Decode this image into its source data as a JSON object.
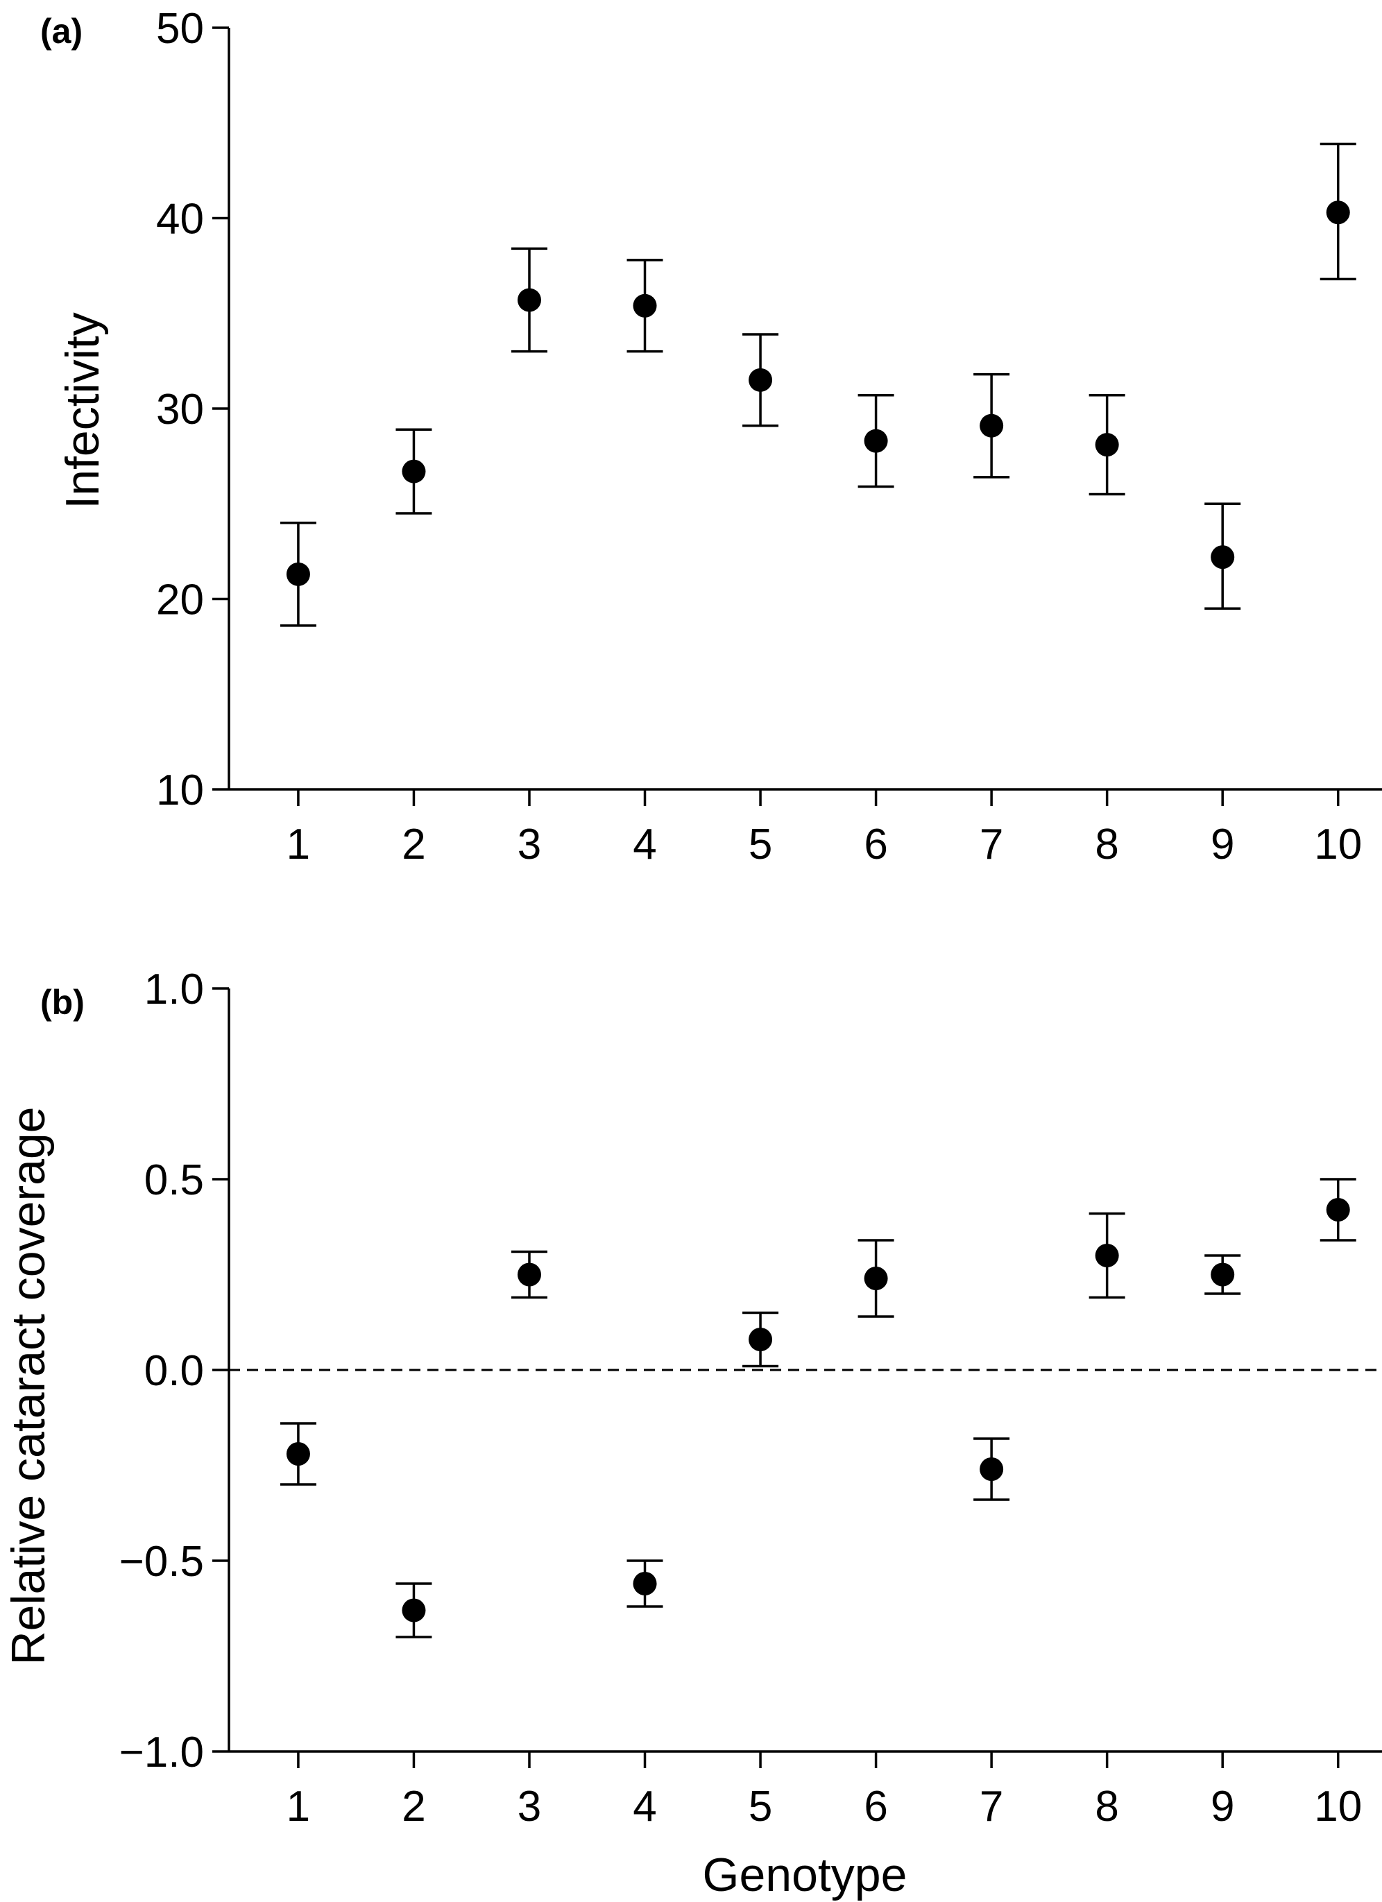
{
  "chart_data": [
    {
      "panel_label": "(a)",
      "type": "scatter",
      "x": [
        1,
        2,
        3,
        4,
        5,
        6,
        7,
        8,
        9,
        10
      ],
      "y": [
        21.3,
        26.7,
        35.7,
        35.4,
        31.5,
        28.3,
        29.1,
        28.1,
        22.2,
        40.3
      ],
      "y_lower": [
        18.6,
        24.5,
        33.0,
        33.0,
        29.1,
        25.9,
        26.4,
        25.5,
        19.5,
        36.8
      ],
      "y_upper": [
        24.0,
        28.9,
        38.4,
        37.8,
        33.9,
        30.7,
        31.8,
        30.7,
        25.0,
        43.9
      ],
      "x_tick_labels": [
        "1",
        "2",
        "3",
        "4",
        "5",
        "6",
        "7",
        "8",
        "9",
        "10"
      ],
      "y_ticks": [
        10,
        20,
        30,
        40,
        50
      ],
      "y_tick_labels": [
        "10",
        "20",
        "30",
        "40",
        "50"
      ],
      "ylim": [
        10,
        50
      ],
      "xlim": [
        0.4,
        10.5
      ],
      "ylabel": "Infectivity",
      "xlabel": "",
      "grid": false,
      "reference_line": null
    },
    {
      "panel_label": "(b)",
      "type": "scatter",
      "x": [
        1,
        2,
        3,
        4,
        5,
        6,
        7,
        8,
        9,
        10
      ],
      "y": [
        -0.22,
        -0.63,
        0.25,
        -0.56,
        0.08,
        0.24,
        -0.26,
        0.3,
        0.25,
        0.42
      ],
      "y_lower": [
        -0.3,
        -0.7,
        0.19,
        -0.62,
        0.01,
        0.14,
        -0.34,
        0.19,
        0.2,
        0.34
      ],
      "y_upper": [
        -0.14,
        -0.56,
        0.31,
        -0.5,
        0.15,
        0.34,
        -0.18,
        0.41,
        0.3,
        0.5
      ],
      "x_tick_labels": [
        "1",
        "2",
        "3",
        "4",
        "5",
        "6",
        "7",
        "8",
        "9",
        "10"
      ],
      "y_ticks": [
        -1.0,
        -0.5,
        0.0,
        0.5,
        1.0
      ],
      "y_tick_labels": [
        "−1.0",
        "−0.5",
        "0.0",
        "0.5",
        "1.0"
      ],
      "ylim": [
        -1.0,
        1.0
      ],
      "xlim": [
        0.4,
        10.5
      ],
      "ylabel": "Relative cataract coverage",
      "xlabel": "Genotype",
      "grid": false,
      "reference_line": 0.0
    }
  ]
}
